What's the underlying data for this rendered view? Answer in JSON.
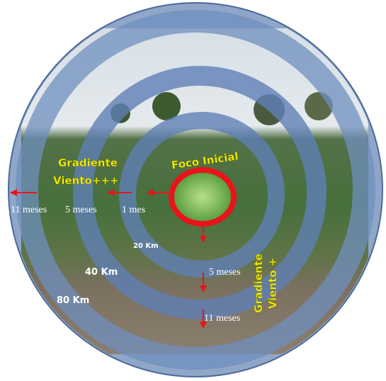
{
  "center_label": "Foco Inicial",
  "wind_left": {
    "line1": "Gradiente",
    "line2": "Viento+++"
  },
  "wind_down": {
    "line1": "Gradiente",
    "line2": "Viento +"
  },
  "left_times": [
    "11 meses",
    "5 meses",
    "1 mes"
  ],
  "down_times": [
    "5 meses",
    "11 meses"
  ],
  "distances": [
    "20 Km",
    "40 Km",
    "80 Km"
  ]
}
